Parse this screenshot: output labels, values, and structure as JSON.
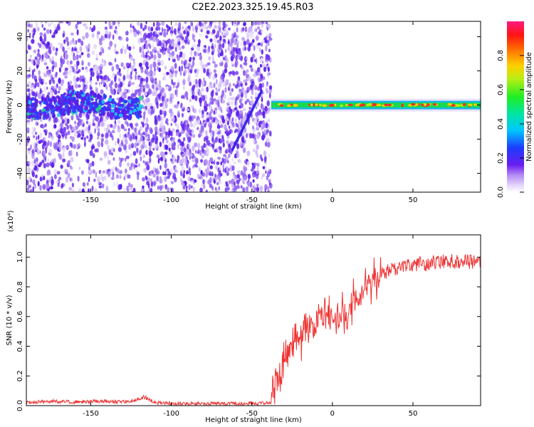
{
  "title": "C2E2.2023.325.19.45.R03",
  "colors": {
    "snr_line": "#ee3333",
    "axis": "#000000",
    "track_core": "#e8332a",
    "track_mid": "#19d94f",
    "track_outer": "#18b8e6",
    "noise": "#7a2ff0"
  },
  "chart_data": [
    {
      "type": "heatmap",
      "title": "C2E2.2023.325.19.45.R03",
      "xlabel": "Height of straight line (km)",
      "ylabel": "Frequency (Hz)",
      "xlim": [
        -190,
        92
      ],
      "ylim": [
        -51,
        49
      ],
      "x_ticks": [
        -150,
        -100,
        -50,
        0,
        50
      ],
      "x_tick_labels": [
        "-150",
        "-100",
        "-50",
        "0",
        "50"
      ],
      "y_ticks": [
        -40,
        -20,
        0,
        20,
        40
      ],
      "y_tick_labels": [
        "-40",
        "-20",
        "0",
        "20",
        "40"
      ],
      "colorbar": {
        "label": "Normalized spectral amplitude",
        "range": [
          0,
          1
        ],
        "ticks": [
          0.0,
          0.2,
          0.4,
          0.6,
          0.8
        ],
        "tick_labels": [
          "0.0",
          "0.2",
          "0.4",
          "0.6",
          "0.8"
        ],
        "colormap": "rainbow (purple to red to magenta)"
      },
      "features": {
        "noise_region_x": [
          -190,
          -38
        ],
        "signal_track_x": [
          -38,
          92
        ],
        "signal_track_frequency_hz": 0,
        "left_band_x": [
          -190,
          -118
        ],
        "left_band_frequency_hz": 0
      }
    },
    {
      "type": "line",
      "xlabel": "Height of straight line (km)",
      "ylabel": "SNR (10 * v/v)",
      "y_scale_label": "(x10⁴)",
      "xlim": [
        -190,
        92
      ],
      "ylim": [
        0,
        1.15
      ],
      "x_ticks": [
        -150,
        -100,
        -50,
        0,
        50
      ],
      "x_tick_labels": [
        "-150",
        "-100",
        "-50",
        "0",
        "50"
      ],
      "y_ticks": [
        0.0,
        0.2,
        0.4,
        0.6,
        0.8,
        1.0
      ],
      "y_tick_labels": [
        "0.0",
        "0.2",
        "0.4",
        "0.6",
        "0.8",
        "1.0"
      ],
      "series": [
        {
          "color": "#ee3333",
          "x": [
            -190,
            -175,
            -160,
            -145,
            -130,
            -120,
            -117,
            -110,
            -100,
            -80,
            -60,
            -45,
            -38,
            -35,
            -30,
            -25,
            -20,
            -15,
            -10,
            -5,
            0,
            5,
            10,
            15,
            20,
            25,
            30,
            40,
            50,
            60,
            70,
            80,
            92
          ],
          "values": [
            0.02,
            0.03,
            0.025,
            0.03,
            0.025,
            0.04,
            0.06,
            0.02,
            0.015,
            0.015,
            0.015,
            0.015,
            0.02,
            0.2,
            0.3,
            0.38,
            0.45,
            0.5,
            0.55,
            0.6,
            0.62,
            0.62,
            0.66,
            0.72,
            0.78,
            0.85,
            0.88,
            0.93,
            0.95,
            0.96,
            0.97,
            0.97,
            0.97
          ]
        }
      ]
    }
  ]
}
